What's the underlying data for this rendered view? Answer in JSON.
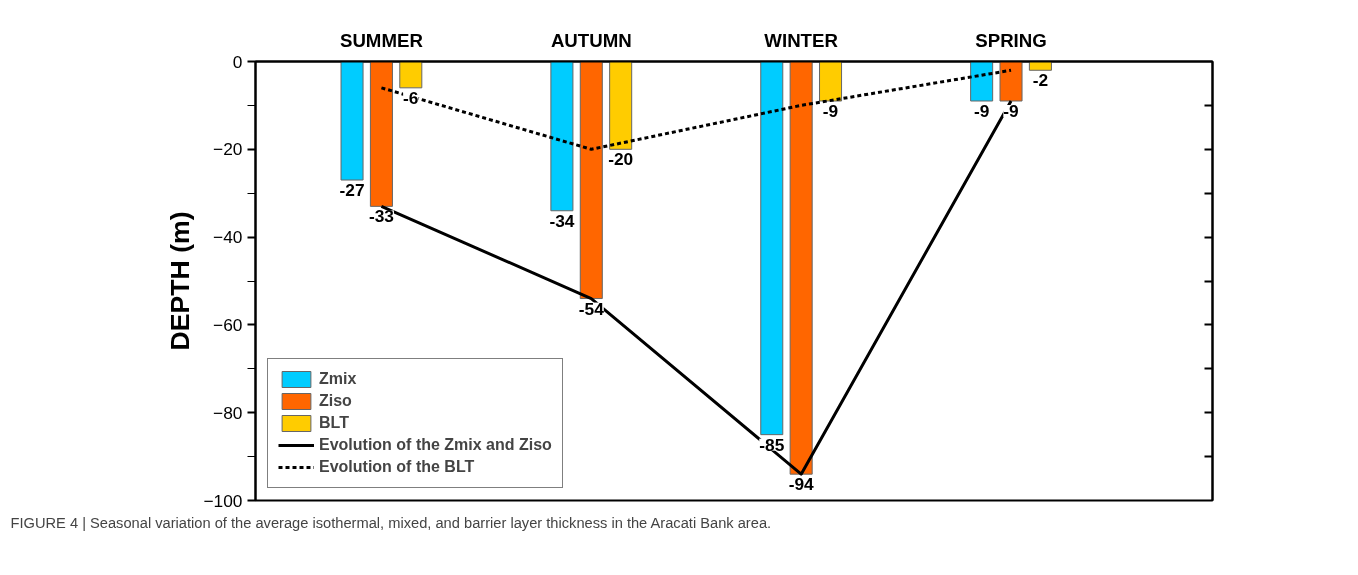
{
  "chart_data": {
    "type": "bar",
    "ylabel": "DEPTH (m)",
    "categories": [
      "SUMMER",
      "AUTUMN",
      "WINTER",
      "SPRING"
    ],
    "series": [
      {
        "name": "Zmix",
        "color": "#00ccff",
        "values": [
          -27,
          -34,
          -85,
          -9
        ],
        "value_labels": [
          "-27",
          "-34",
          "-85",
          "-9"
        ]
      },
      {
        "name": "Ziso",
        "color": "#ff6600",
        "values": [
          -33,
          -54,
          -94,
          -9
        ],
        "value_labels": [
          "-33",
          "-54",
          "-94",
          "-9"
        ]
      },
      {
        "name": "BLT",
        "color": "#ffcc00",
        "values": [
          -6,
          -20,
          -9,
          -2
        ],
        "value_labels": [
          "-6",
          "-20",
          "-9",
          "-2"
        ]
      },
      {
        "name": "Evolution of the Zmix and Ziso",
        "type": "line",
        "color": "#000000",
        "line_style": "solid",
        "values": [
          -33,
          -54,
          -94,
          -9
        ]
      },
      {
        "name": "Evolution of the BLT",
        "type": "line",
        "color": "#000000",
        "line_style": "dashed",
        "values": [
          -6,
          -20,
          -10,
          -2
        ]
      }
    ],
    "ylim": [
      -100,
      0
    ],
    "yticks": [
      0,
      -20,
      -40,
      -60,
      -80,
      -100
    ],
    "legend": "bottom left",
    "grid": false,
    "annotations": [
      "FIGURE 4 | Seasonal variation of the average isothermal, mixed, and barrier layer thickness in the Aracati Bank area."
    ]
  }
}
